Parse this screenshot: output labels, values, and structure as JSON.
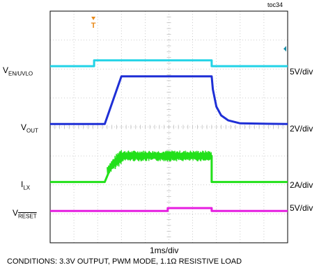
{
  "chart_data": {
    "type": "line",
    "figure_id": "toc34",
    "x_scale_label": "1ms/div",
    "conditions": "CONDITIONS: 3.3V OUTPUT, PWM MODE, 1.1Ω RESISTIVE LOAD",
    "grid": true,
    "divisions": {
      "x": 10,
      "y": 8
    },
    "x_range_div": [
      0,
      10
    ],
    "trigger_marker": "T",
    "colors": {
      "v_en_uvlo": "#22d3e6",
      "v_out": "#1e2fd6",
      "i_lx": "#22e01a",
      "v_reset": "#e61ee0",
      "trigger": "#e88a1a",
      "grid": "#bdbdbd"
    },
    "series": [
      {
        "name_main": "V",
        "name_sub": "EN/UVLO",
        "scale": "5V/div",
        "units_per_div": 5,
        "offset_div": 6.1,
        "x": [
          0,
          1.85,
          1.85,
          6.8,
          6.8,
          10
        ],
        "y": [
          0,
          0,
          1,
          1,
          0,
          0
        ]
      },
      {
        "name_main": "V",
        "name_sub": "OUT",
        "scale": "2V/div",
        "units_per_div": 2,
        "offset_div": 4.1,
        "x": [
          0,
          2.3,
          3.0,
          3.1,
          6.8,
          6.85,
          7.0,
          7.2,
          7.5,
          8.0,
          10
        ],
        "y": [
          0,
          0,
          3.3,
          3.3,
          3.3,
          2.4,
          1.2,
          0.6,
          0.25,
          0.05,
          0
        ]
      },
      {
        "name_main": "I",
        "name_sub": "LX",
        "scale": "2A/div",
        "units_per_div": 2,
        "offset_div": 2.1,
        "x": [
          0,
          2.3,
          2.5,
          3.0,
          6.8,
          6.8,
          10
        ],
        "y": [
          0,
          0,
          0.8,
          1.8,
          1.8,
          0,
          0
        ]
      },
      {
        "name_main": "V",
        "name_over": "RESET",
        "scale": "5V/div",
        "units_per_div": 5,
        "offset_div": 1.1,
        "x": [
          0,
          4.95,
          4.95,
          6.8,
          6.8,
          10
        ],
        "y": [
          0,
          0,
          0.5,
          0.5,
          0,
          0
        ]
      }
    ]
  }
}
